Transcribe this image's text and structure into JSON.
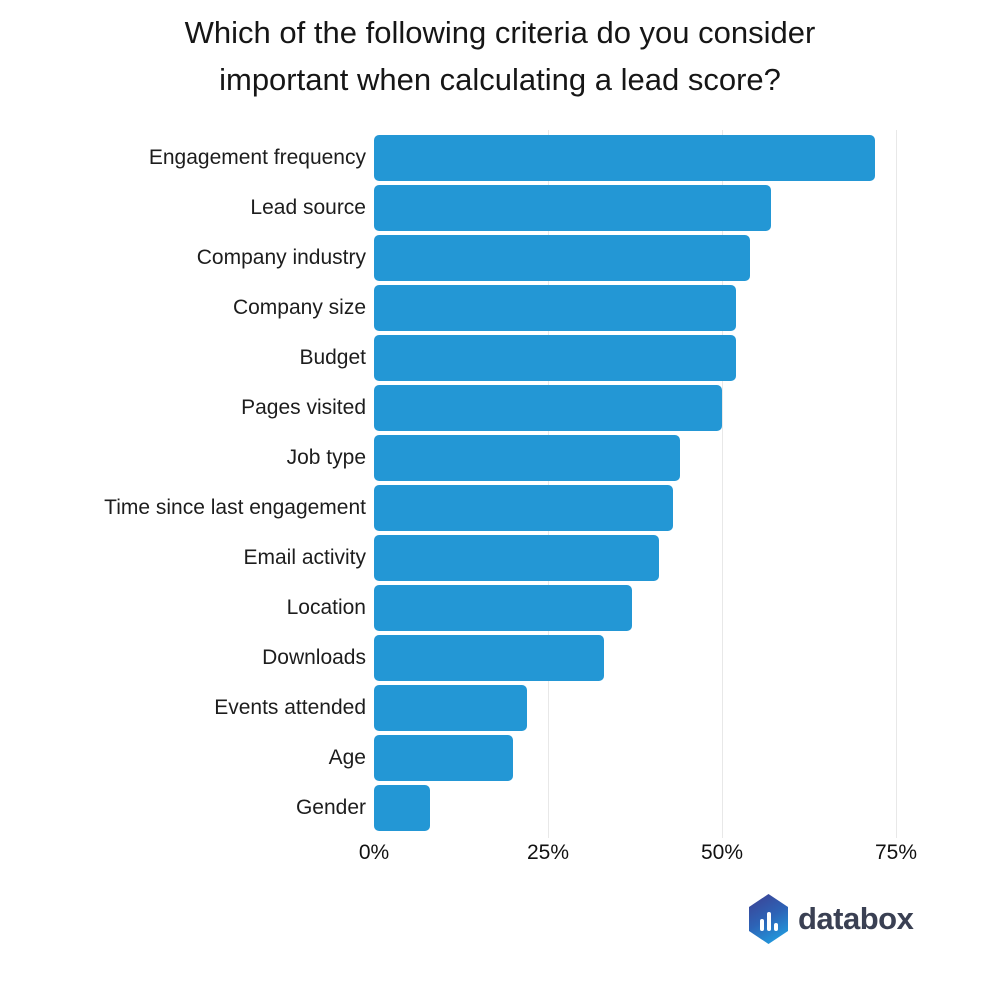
{
  "title_lines": [
    "Which of the following criteria do you consider",
    "important when calculating a lead score?"
  ],
  "chart_data": {
    "type": "bar",
    "orientation": "horizontal",
    "title": "Which of the following criteria do you consider important when calculating a lead score?",
    "categories": [
      "Engagement frequency",
      "Lead source",
      "Company industry",
      "Company size",
      "Budget",
      "Pages visited",
      "Job type",
      "Time since last engagement",
      "Email activity",
      "Location",
      "Downloads",
      "Events attended",
      "Age",
      "Gender"
    ],
    "values": [
      72,
      57,
      54,
      52,
      52,
      50,
      44,
      43,
      41,
      37,
      33,
      22,
      20,
      8
    ],
    "unit": "%",
    "xlabel": "",
    "ylabel": "",
    "xlim": [
      0,
      84
    ],
    "x_tick_values": [
      0,
      25,
      50,
      75
    ],
    "x_tick_labels": [
      "0%",
      "25%",
      "50%",
      "75%"
    ],
    "grid": "vertical gridlines at 25%, 50%, 75%",
    "legend": "none",
    "bar_color": "#2397d5",
    "gridline_color": "#e8e8e8"
  },
  "footer": {
    "logo_text": "databox",
    "logo_icon": "hexagon-bar-chart",
    "logo_gradient": [
      "#3e3f91",
      "#2d63b6",
      "#1fa9e8"
    ],
    "logo_text_color": "#3a4053"
  }
}
